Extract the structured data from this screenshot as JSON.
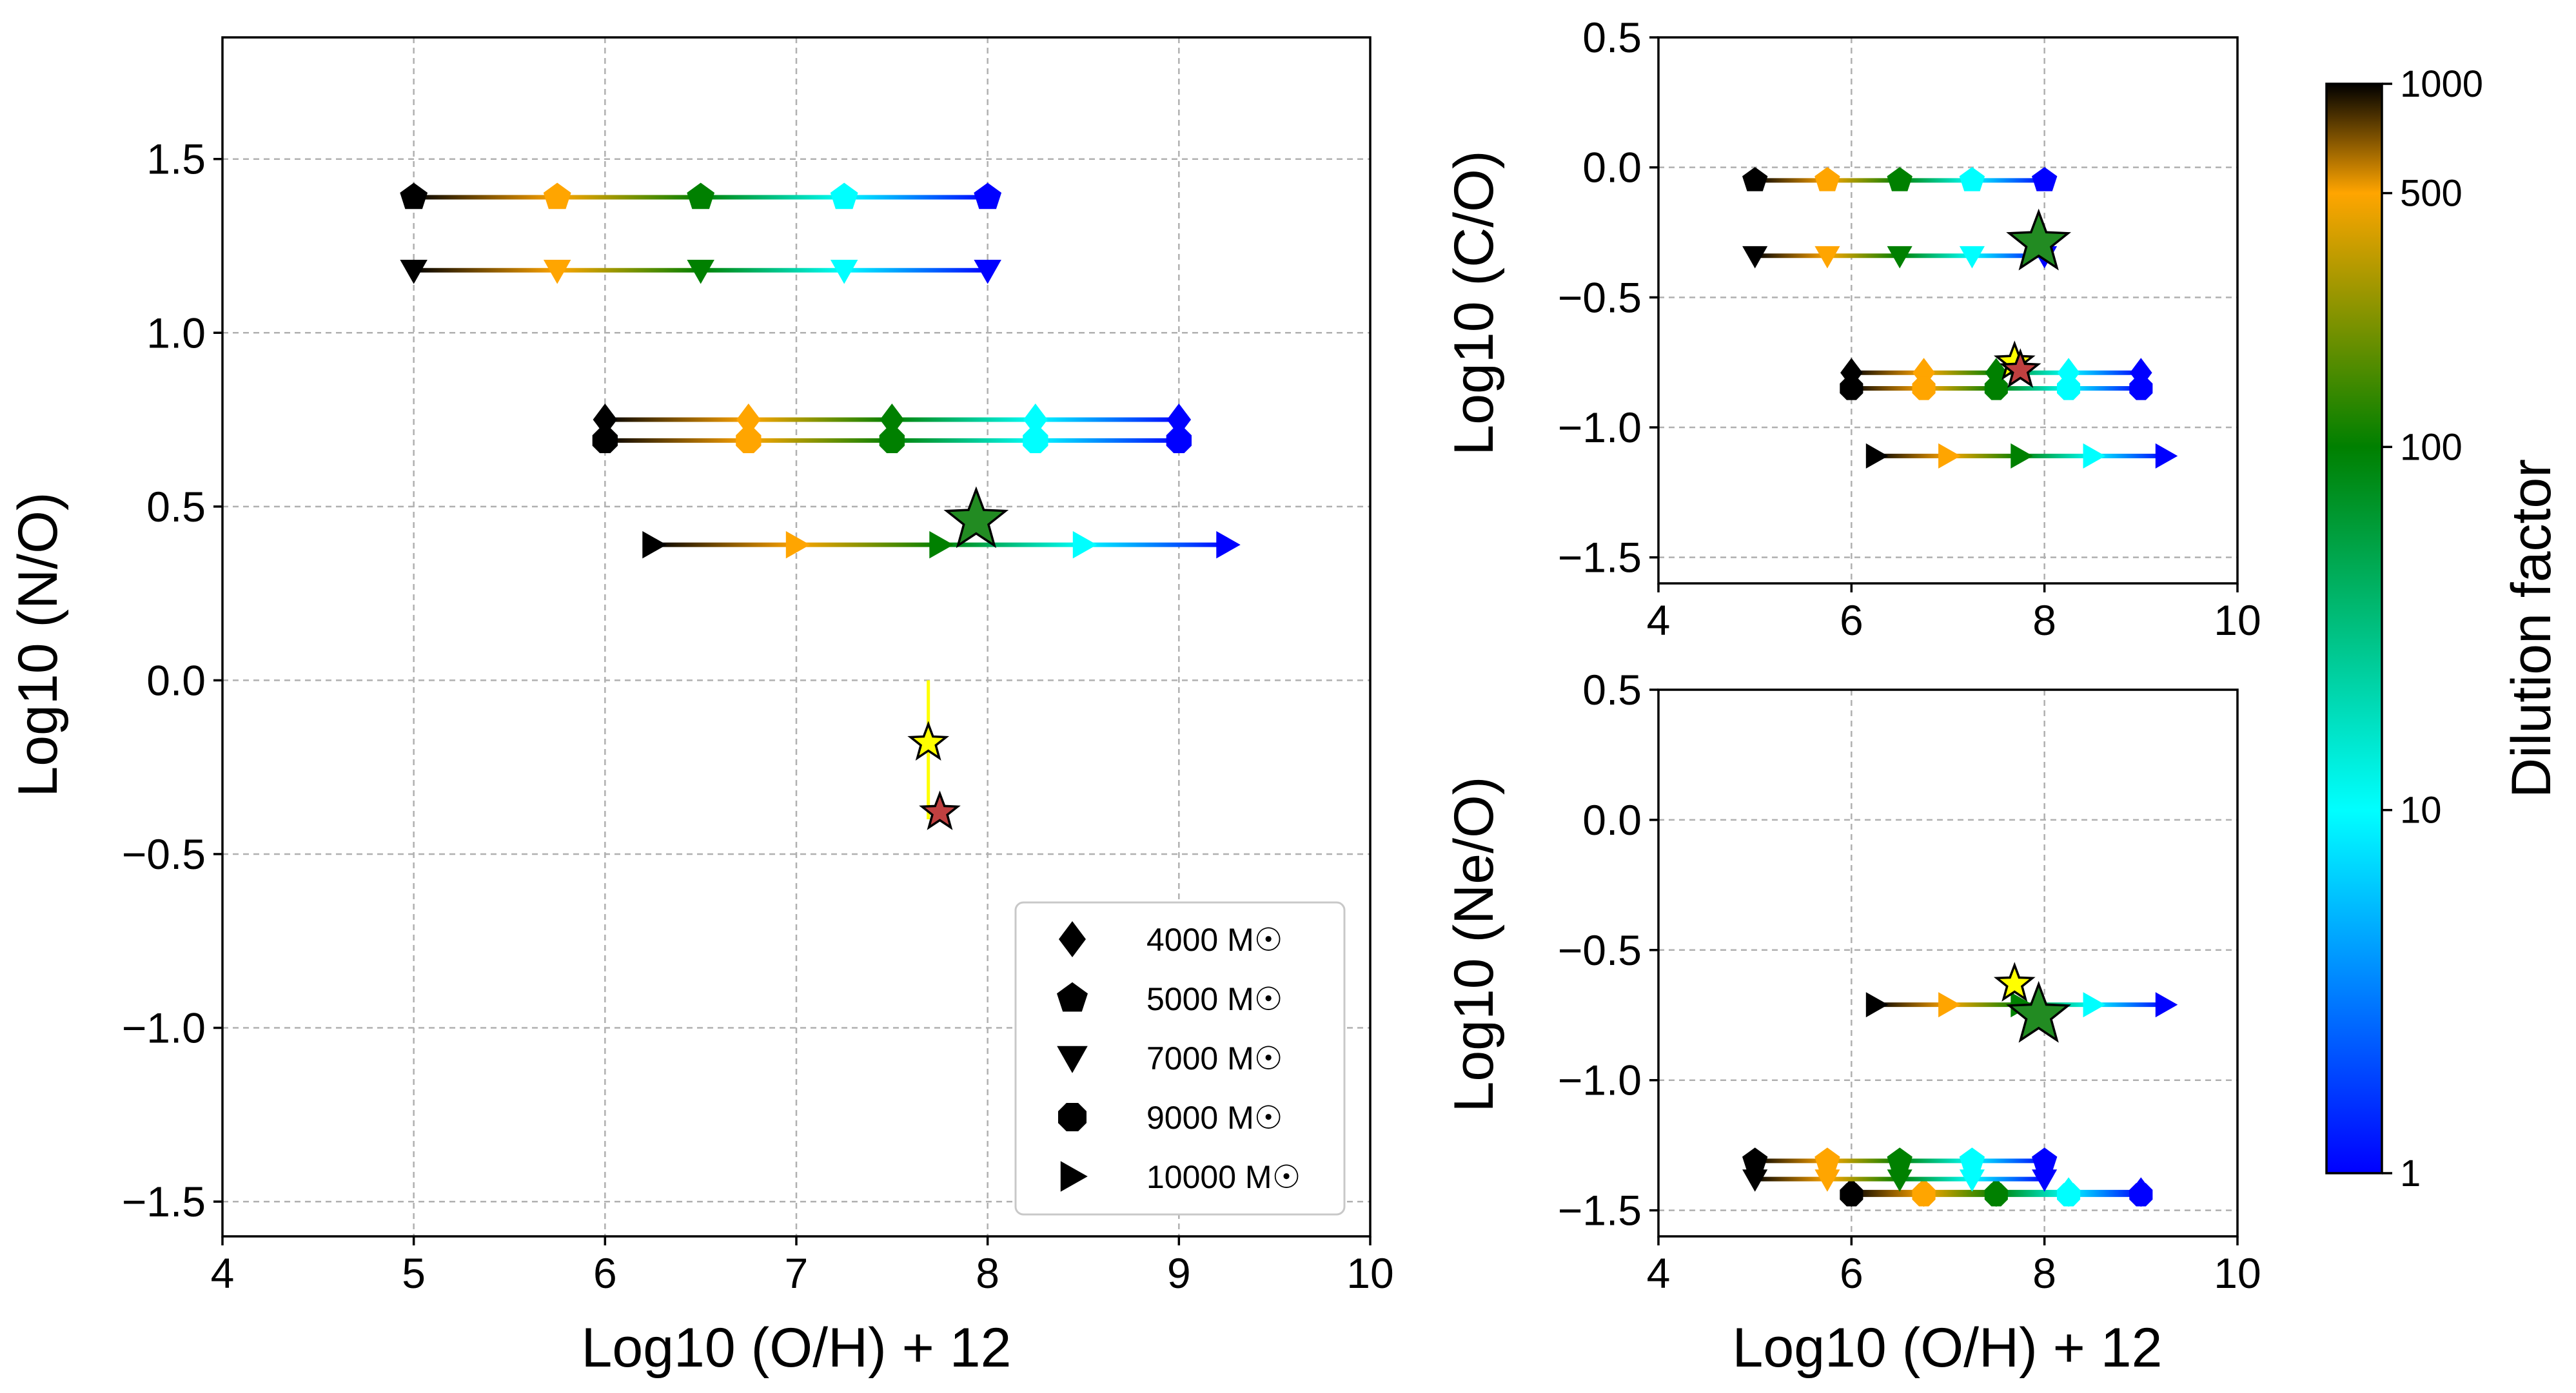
{
  "chart_data": [
    {
      "type": "scatter",
      "panel": "N/O",
      "xlabel": "Log10 (O/H) + 12",
      "ylabel": "Log10 (N/O)",
      "xlim": [
        4,
        10
      ],
      "ylim": [
        -1.6,
        1.85
      ],
      "xticks": [
        4,
        5,
        6,
        7,
        8,
        9,
        10
      ],
      "yticks": [
        -1.5,
        -1.0,
        -0.5,
        0.0,
        0.5,
        1.0,
        1.5
      ],
      "grid": true,
      "legend_position": "bottom-right",
      "legend": [
        {
          "marker": "diamond",
          "label": "4000 M☉"
        },
        {
          "marker": "pentagon",
          "label": "5000 M☉"
        },
        {
          "marker": "triangle-down",
          "label": "7000 M☉"
        },
        {
          "marker": "octagon",
          "label": "9000 M☉"
        },
        {
          "marker": "triangle-right",
          "label": "10000 M☉"
        }
      ],
      "series": [
        {
          "name": "4000 M☉",
          "marker": "diamond",
          "y": 0.75,
          "x_start": 6.0,
          "x_end": 9.0
        },
        {
          "name": "5000 M☉",
          "marker": "pentagon",
          "y": 1.39,
          "x_start": 5.0,
          "x_end": 8.0
        },
        {
          "name": "7000 M☉",
          "marker": "triangle-down",
          "y": 1.18,
          "x_start": 5.0,
          "x_end": 8.0
        },
        {
          "name": "9000 M☉",
          "marker": "octagon",
          "y": 0.69,
          "x_start": 6.0,
          "x_end": 9.0
        },
        {
          "name": "10000 M☉",
          "marker": "triangle-right",
          "y": 0.39,
          "x_start": 6.25,
          "x_end": 9.25
        }
      ],
      "observations": [
        {
          "x": 7.69,
          "y": -0.18,
          "color": "#ffff00",
          "size": "small",
          "errorbar_y": [
            -0.4,
            0.0
          ]
        },
        {
          "x": 7.75,
          "y": -0.38,
          "color": "#c04040",
          "size": "small"
        },
        {
          "x": 7.94,
          "y": 0.46,
          "color": "#228b22",
          "size": "large"
        }
      ]
    },
    {
      "type": "scatter",
      "panel": "C/O",
      "xlabel": "",
      "ylabel": "Log10 (C/O)",
      "xlim": [
        4,
        10
      ],
      "ylim": [
        -1.6,
        0.5
      ],
      "xticks": [
        4,
        6,
        8,
        10
      ],
      "yticks": [
        -1.5,
        -1.0,
        -0.5,
        0.0,
        0.5
      ],
      "grid": true,
      "series": [
        {
          "name": "4000 M☉",
          "marker": "diamond",
          "y": -0.79,
          "x_start": 6.0,
          "x_end": 9.0
        },
        {
          "name": "5000 M☉",
          "marker": "pentagon",
          "y": -0.05,
          "x_start": 5.0,
          "x_end": 8.0
        },
        {
          "name": "7000 M☉",
          "marker": "triangle-down",
          "y": -0.34,
          "x_start": 5.0,
          "x_end": 8.0
        },
        {
          "name": "9000 M☉",
          "marker": "octagon",
          "y": -0.85,
          "x_start": 6.0,
          "x_end": 9.0
        },
        {
          "name": "10000 M☉",
          "marker": "triangle-right",
          "y": -1.11,
          "x_start": 6.25,
          "x_end": 9.25
        }
      ],
      "observations": [
        {
          "x": 7.69,
          "y": -0.75,
          "color": "#ffff00",
          "size": "small"
        },
        {
          "x": 7.75,
          "y": -0.78,
          "color": "#c04040",
          "size": "small"
        },
        {
          "x": 7.94,
          "y": -0.29,
          "color": "#228b22",
          "size": "large"
        }
      ]
    },
    {
      "type": "scatter",
      "panel": "Ne/O",
      "xlabel": "Log10 (O/H) + 12",
      "ylabel": "Log10 (Ne/O)",
      "xlim": [
        4,
        10
      ],
      "ylim": [
        -1.6,
        0.5
      ],
      "xticks": [
        4,
        6,
        8,
        10
      ],
      "yticks": [
        -1.5,
        -1.0,
        -0.5,
        0.0,
        0.5
      ],
      "grid": true,
      "series": [
        {
          "name": "4000 M☉",
          "marker": "diamond",
          "y": -1.43,
          "x_start": 6.0,
          "x_end": 9.0
        },
        {
          "name": "5000 M☉",
          "marker": "pentagon",
          "y": -1.31,
          "x_start": 5.0,
          "x_end": 8.0
        },
        {
          "name": "7000 M☉",
          "marker": "triangle-down",
          "y": -1.38,
          "x_start": 5.0,
          "x_end": 8.0
        },
        {
          "name": "9000 M☉",
          "marker": "octagon",
          "y": -1.44,
          "x_start": 6.0,
          "x_end": 9.0
        },
        {
          "name": "10000 M☉",
          "marker": "triangle-right",
          "y": -0.71,
          "x_start": 6.25,
          "x_end": 9.25
        }
      ],
      "observations": [
        {
          "x": 7.69,
          "y": -0.63,
          "color": "#ffff00",
          "size": "small"
        },
        {
          "x": 7.94,
          "y": -0.75,
          "color": "#228b22",
          "size": "large"
        }
      ]
    }
  ],
  "dilution": {
    "factors": [
      1000,
      500,
      100,
      10,
      1
    ],
    "colors": [
      "#000000",
      "#ffa500",
      "#008000",
      "#00ffff",
      "#0000ff"
    ]
  },
  "colorbar": {
    "label": "Dilution factor",
    "scale": "log",
    "range": [
      1,
      1000
    ],
    "ticks": [
      "1000",
      "500",
      "100",
      "10",
      "1"
    ],
    "tick_values": [
      1000,
      500,
      100,
      10,
      1
    ],
    "colormap_stops": [
      {
        "value": 1,
        "color": "#0000ff"
      },
      {
        "value": 10,
        "color": "#00ffff"
      },
      {
        "value": 100,
        "color": "#008000"
      },
      {
        "value": 500,
        "color": "#ffa500"
      },
      {
        "value": 1000,
        "color": "#000000"
      }
    ]
  }
}
